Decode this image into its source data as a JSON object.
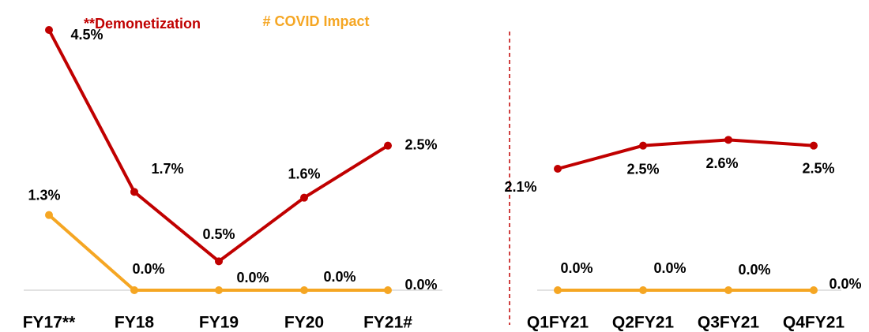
{
  "chart_data": [
    {
      "type": "line",
      "annotations": [
        "**Demonetization",
        "# COVID Impact"
      ],
      "categories": [
        "FY17**",
        "FY18",
        "FY19",
        "FY20",
        "FY21#"
      ],
      "ylim": [
        0,
        4.5
      ],
      "series": [
        {
          "color": "#c00000",
          "values": [
            4.5,
            1.7,
            0.5,
            1.6,
            2.5
          ],
          "value_labels": [
            "4.5%",
            "1.7%",
            "0.5%",
            "1.6%",
            "2.5%"
          ]
        },
        {
          "color": "#f5a623",
          "values": [
            1.3,
            0.0,
            0.0,
            0.0,
            0.0
          ],
          "value_labels": [
            "1.3%",
            "0.0%",
            "0.0%",
            "0.0%",
            "0.0%"
          ]
        }
      ]
    },
    {
      "type": "line",
      "categories": [
        "Q1FY21",
        "Q2FY21",
        "Q3FY21",
        "Q4FY21"
      ],
      "ylim": [
        0,
        4.5
      ],
      "series": [
        {
          "color": "#c00000",
          "values": [
            2.1,
            2.5,
            2.6,
            2.5
          ],
          "value_labels": [
            "2.1%",
            "2.5%",
            "2.6%",
            "2.5%"
          ]
        },
        {
          "color": "#f5a623",
          "values": [
            0.0,
            0.0,
            0.0,
            0.0
          ],
          "value_labels": [
            "0.0%",
            "0.0%",
            "0.0%",
            "0.0%"
          ]
        }
      ]
    }
  ]
}
